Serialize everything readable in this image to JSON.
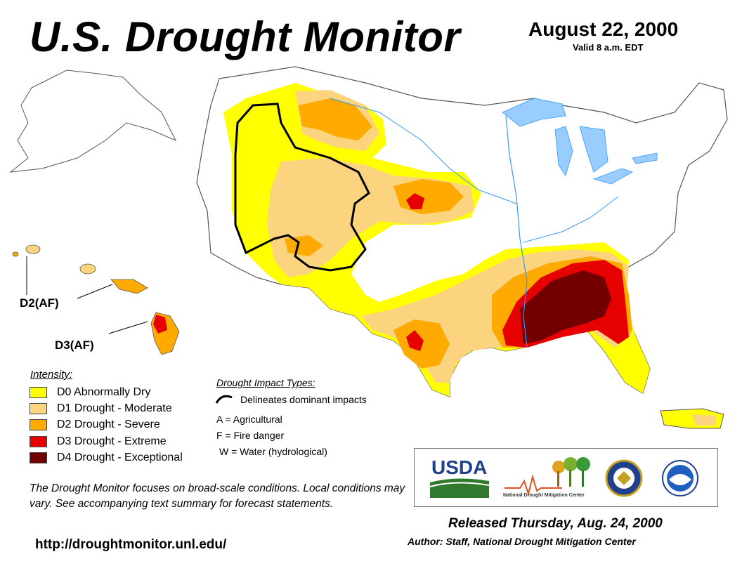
{
  "header": {
    "title": "U.S. Drought Monitor",
    "date": "August 22, 2000",
    "valid": "Valid 8 a.m. EDT"
  },
  "map_labels": {
    "hawaii_d2": "D2(AF)",
    "hawaii_d3": "D3(AF)"
  },
  "legend": {
    "title": "Intensity:",
    "items": [
      {
        "label": "D0 Abnormally Dry",
        "color": "#ffff00"
      },
      {
        "label": "D1 Drought - Moderate",
        "color": "#fcd37f"
      },
      {
        "label": "D2 Drought - Severe",
        "color": "#ffaa00"
      },
      {
        "label": "D3 Drought - Extreme",
        "color": "#e60000"
      },
      {
        "label": "D4 Drought - Exceptional",
        "color": "#730000"
      }
    ]
  },
  "impacts": {
    "title": "Drought Impact Types:",
    "line_label": "Delineates dominant impacts",
    "types": [
      "A = Agricultural",
      "F = Fire danger",
      "W = Water (hydrological)"
    ]
  },
  "disclaimer": "The Drought Monitor focuses on broad-scale conditions. Local conditions may vary. See accompanying text summary for forecast statements.",
  "url": "http://droughtmonitor.unl.edu/",
  "logos": {
    "usda": "USDA",
    "ndmc": "National Drought Mitigation Center"
  },
  "released": "Released Thursday, Aug. 24, 2000",
  "author": "Author: Staff, National Drought Mitigation Center",
  "colors": {
    "water": "#99ccff",
    "river": "#3399ff",
    "usda_blue": "#1f3f8f",
    "usda_green": "#2f7a2f"
  }
}
